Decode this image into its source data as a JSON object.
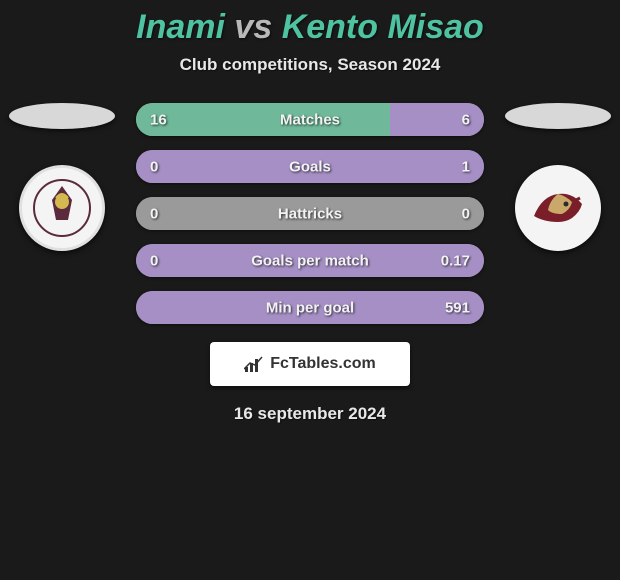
{
  "title": {
    "player1": "Inami",
    "vs": "vs",
    "player2": "Kento Misao"
  },
  "subtitle": "Club competitions, Season 2024",
  "colors": {
    "accent": "#4fc3a1",
    "bar_left": "#6fb89a",
    "bar_right": "#a58fc4",
    "neutral": "#9a9a9a",
    "background": "#1a1a1a",
    "text": "#f2f2f2"
  },
  "stats": [
    {
      "label": "Matches",
      "left_val": "16",
      "right_val": "6",
      "left_pct": 73,
      "right_pct": 27,
      "left_color": "#6fb89a",
      "right_color": "#a58fc4"
    },
    {
      "label": "Goals",
      "left_val": "0",
      "right_val": "1",
      "left_pct": 0,
      "right_pct": 100,
      "left_color": "#9a9a9a",
      "right_color": "#a58fc4"
    },
    {
      "label": "Hattricks",
      "left_val": "0",
      "right_val": "0",
      "left_pct": 50,
      "right_pct": 50,
      "left_color": "#9a9a9a",
      "right_color": "#9a9a9a"
    },
    {
      "label": "Goals per match",
      "left_val": "0",
      "right_val": "0.17",
      "left_pct": 0,
      "right_pct": 100,
      "left_color": "#9a9a9a",
      "right_color": "#a58fc4"
    },
    {
      "label": "Min per goal",
      "left_val": "",
      "right_val": "591",
      "left_pct": 0,
      "right_pct": 100,
      "left_color": "#9a9a9a",
      "right_color": "#a58fc4"
    }
  ],
  "logo_text": "FcTables.com",
  "date": "16 september 2024",
  "bar": {
    "height": 33,
    "radius": 17,
    "font_size": 15
  },
  "badge_left": {
    "bg": "#f4f4f4",
    "inner1": "#5b2a3c",
    "inner2": "#d4b850"
  },
  "badge_right": {
    "bg": "#f4f4f4",
    "stroke": "#7a1f2a",
    "accent": "#c9a86a"
  }
}
